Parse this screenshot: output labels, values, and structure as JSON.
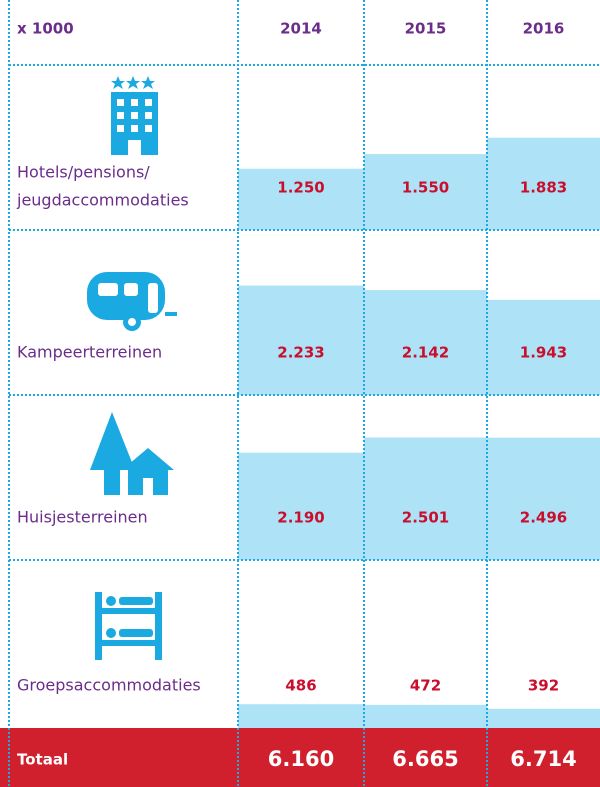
{
  "header": {
    "unit": "x 1000",
    "years": [
      "2014",
      "2015",
      "2016"
    ]
  },
  "rows": [
    {
      "label_lines": [
        "Hotels/pensions/",
        "jeugdaccommodaties"
      ],
      "values": [
        1250,
        1550,
        1883
      ],
      "value_labels": [
        "1.250",
        "1.550",
        "1.883"
      ]
    },
    {
      "label_lines": [
        "Kampeerterreinen"
      ],
      "values": [
        2233,
        2142,
        1943
      ],
      "value_labels": [
        "2.233",
        "2.142",
        "1.943"
      ]
    },
    {
      "label_lines": [
        "Huisjesterreinen"
      ],
      "values": [
        2190,
        2501,
        2496
      ],
      "value_labels": [
        "2.190",
        "2.501",
        "2.496"
      ]
    },
    {
      "label_lines": [
        "Groepsaccommodaties"
      ],
      "values": [
        486,
        472,
        392
      ],
      "value_labels": [
        "486",
        "472",
        "392"
      ]
    }
  ],
  "total": {
    "label": "Totaal",
    "values": [
      6160,
      6665,
      6714
    ],
    "value_labels": [
      "6.160",
      "6.665",
      "6.714"
    ]
  }
}
